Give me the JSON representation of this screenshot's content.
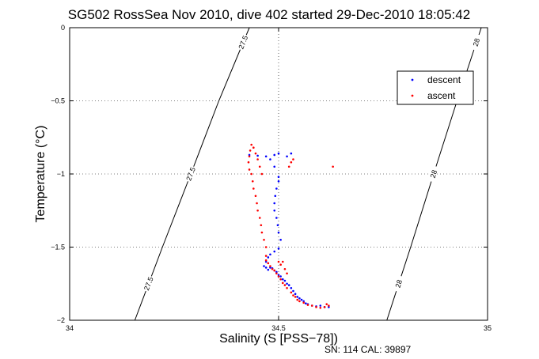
{
  "figure": {
    "title": "SG502 RossSea Nov 2010, dive 402 started 29-Dec-2010 18:05:42",
    "footer": "SN: 114  CAL: 39897"
  },
  "chart_data": {
    "type": "scatter",
    "title": "SG502 RossSea Nov 2010, dive 402 started 29-Dec-2010 18:05:42",
    "xlabel": "Salinity (S [PSS−78])",
    "ylabel": "Temperature (°C)",
    "xlim": [
      34,
      35
    ],
    "ylim": [
      -2,
      0
    ],
    "xticks": [
      34,
      34.5,
      35
    ],
    "xtick_labels": [
      "34",
      "34.5",
      "35"
    ],
    "yticks": [
      -2,
      -1.5,
      -1,
      -0.5,
      0
    ],
    "ytick_labels": [
      "−2",
      "−1.5",
      "−1",
      "−0.5",
      "0"
    ],
    "grid": true,
    "legend_position": "top-right",
    "series": [
      {
        "name": "descent",
        "color": "#0000ff",
        "points": [
          [
            34.62,
            -1.91
          ],
          [
            34.61,
            -1.91
          ],
          [
            34.6,
            -1.9
          ],
          [
            34.59,
            -1.905
          ],
          [
            34.58,
            -1.9
          ],
          [
            34.57,
            -1.89
          ],
          [
            34.565,
            -1.885
          ],
          [
            34.56,
            -1.87
          ],
          [
            34.555,
            -1.86
          ],
          [
            34.55,
            -1.85
          ],
          [
            34.545,
            -1.84
          ],
          [
            34.54,
            -1.82
          ],
          [
            34.535,
            -1.8
          ],
          [
            34.53,
            -1.78
          ],
          [
            34.525,
            -1.76
          ],
          [
            34.52,
            -1.75
          ],
          [
            34.515,
            -1.73
          ],
          [
            34.51,
            -1.72
          ],
          [
            34.505,
            -1.7
          ],
          [
            34.5,
            -1.69
          ],
          [
            34.495,
            -1.67
          ],
          [
            34.49,
            -1.66
          ],
          [
            34.485,
            -1.645
          ],
          [
            34.48,
            -1.64
          ],
          [
            34.475,
            -1.655
          ],
          [
            34.47,
            -1.64
          ],
          [
            34.465,
            -1.63
          ],
          [
            34.47,
            -1.6
          ],
          [
            34.475,
            -1.57
          ],
          [
            34.48,
            -1.55
          ],
          [
            34.49,
            -1.53
          ],
          [
            34.5,
            -1.51
          ],
          [
            34.505,
            -1.45
          ],
          [
            34.5,
            -1.4
          ],
          [
            34.498,
            -1.35
          ],
          [
            34.495,
            -1.3
          ],
          [
            34.49,
            -1.25
          ],
          [
            34.49,
            -1.2
          ],
          [
            34.492,
            -1.15
          ],
          [
            34.495,
            -1.1
          ],
          [
            34.5,
            -1.05
          ],
          [
            34.5,
            -1.02
          ],
          [
            34.49,
            -0.95
          ],
          [
            34.48,
            -0.9
          ],
          [
            34.47,
            -0.88
          ],
          [
            34.45,
            -0.875
          ],
          [
            34.43,
            -0.87
          ],
          [
            34.49,
            -0.87
          ],
          [
            34.5,
            -0.86
          ],
          [
            34.52,
            -0.88
          ],
          [
            34.53,
            -0.86
          ]
        ]
      },
      {
        "name": "ascent",
        "color": "#ff0000",
        "points": [
          [
            34.63,
            -0.95
          ],
          [
            34.62,
            -1.9
          ],
          [
            34.615,
            -1.89
          ],
          [
            34.61,
            -1.91
          ],
          [
            34.6,
            -1.915
          ],
          [
            34.59,
            -1.91
          ],
          [
            34.58,
            -1.9
          ],
          [
            34.57,
            -1.895
          ],
          [
            34.56,
            -1.88
          ],
          [
            34.55,
            -1.87
          ],
          [
            34.545,
            -1.86
          ],
          [
            34.54,
            -1.84
          ],
          [
            34.535,
            -1.83
          ],
          [
            34.53,
            -1.81
          ],
          [
            34.52,
            -1.78
          ],
          [
            34.515,
            -1.76
          ],
          [
            34.51,
            -1.745
          ],
          [
            34.505,
            -1.72
          ],
          [
            34.5,
            -1.7
          ],
          [
            34.495,
            -1.68
          ],
          [
            34.49,
            -1.66
          ],
          [
            34.485,
            -1.65
          ],
          [
            34.48,
            -1.63
          ],
          [
            34.475,
            -1.61
          ],
          [
            34.47,
            -1.59
          ],
          [
            34.47,
            -1.56
          ],
          [
            34.47,
            -1.5
          ],
          [
            34.465,
            -1.45
          ],
          [
            34.46,
            -1.4
          ],
          [
            34.458,
            -1.35
          ],
          [
            34.455,
            -1.3
          ],
          [
            34.45,
            -1.25
          ],
          [
            34.448,
            -1.2
          ],
          [
            34.445,
            -1.15
          ],
          [
            34.44,
            -1.1
          ],
          [
            34.438,
            -1.05
          ],
          [
            34.435,
            -1.0
          ],
          [
            34.43,
            -0.97
          ],
          [
            34.428,
            -0.92
          ],
          [
            34.43,
            -0.88
          ],
          [
            34.432,
            -0.84
          ],
          [
            34.435,
            -0.8
          ],
          [
            34.44,
            -0.82
          ],
          [
            34.445,
            -0.86
          ],
          [
            34.45,
            -0.9
          ],
          [
            34.455,
            -0.95
          ],
          [
            34.46,
            -1.0
          ],
          [
            34.5,
            -1.6
          ],
          [
            34.505,
            -1.62
          ],
          [
            34.51,
            -1.6
          ],
          [
            34.515,
            -1.65
          ],
          [
            34.52,
            -1.68
          ],
          [
            34.53,
            -0.92
          ],
          [
            34.535,
            -0.9
          ],
          [
            34.525,
            -0.95
          ]
        ]
      }
    ],
    "contours": [
      {
        "label": "27.5",
        "points": [
          [
            34.156,
            -2
          ],
          [
            34.222,
            -1.5
          ],
          [
            34.29,
            -1
          ],
          [
            34.357,
            -0.5
          ],
          [
            34.43,
            0
          ]
        ]
      },
      {
        "label": "28",
        "points": [
          [
            34.759,
            -2
          ],
          [
            34.816,
            -1.5
          ],
          [
            34.871,
            -1
          ],
          [
            34.927,
            -0.5
          ],
          [
            34.985,
            0
          ]
        ]
      }
    ]
  }
}
